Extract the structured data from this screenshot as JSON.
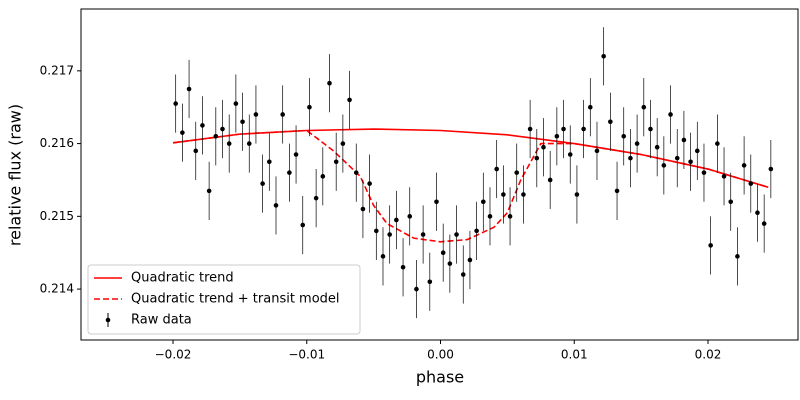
{
  "chart_data": {
    "type": "scatter",
    "xlabel": "phase",
    "ylabel": "relative flux (raw)",
    "xlim": [
      -0.02688,
      0.02673
    ],
    "ylim": [
      0.2133,
      0.21785
    ],
    "xticks": [
      {
        "value": -0.02,
        "label": "−0.02"
      },
      {
        "value": -0.01,
        "label": "−0.01"
      },
      {
        "value": 0,
        "label": "0.00"
      },
      {
        "value": 0.01,
        "label": "0.01"
      },
      {
        "value": 0.02,
        "label": "0.02"
      }
    ],
    "yticks": [
      0.214,
      0.215,
      0.216,
      0.217
    ],
    "legend": "lower left",
    "series": [
      {
        "name": "Quadratic trend",
        "type": "line",
        "style": "solid",
        "color": "#ff0000",
        "x": [
          -0.02,
          -0.015,
          -0.01,
          -0.005,
          0,
          0.005,
          0.01,
          0.015,
          0.02,
          0.0245
        ],
        "values": [
          0.21601,
          0.21613,
          0.21618,
          0.2162,
          0.21618,
          0.21612,
          0.216,
          0.21585,
          0.21565,
          0.2154
        ]
      },
      {
        "name": "Quadratic trend + transit model",
        "type": "line",
        "style": "dashed",
        "color": "#ff0000",
        "x": [
          -0.02,
          -0.015,
          -0.01,
          -0.008,
          -0.006,
          -0.005,
          -0.004,
          -0.002,
          0,
          0.002,
          0.004,
          0.005,
          0.006,
          0.0075,
          0.01,
          0.015,
          0.02,
          0.0245
        ],
        "values": [
          0.21601,
          0.21613,
          0.21618,
          0.2159,
          0.21555,
          0.21515,
          0.2149,
          0.2147,
          0.21465,
          0.21468,
          0.21485,
          0.21505,
          0.2155,
          0.216,
          0.216,
          0.21585,
          0.21565,
          0.2154
        ]
      },
      {
        "name": "Raw data",
        "type": "errorbar",
        "color": "#000000",
        "yerr": 0.0004,
        "x": [
          -0.0198,
          -0.0193,
          -0.0188,
          -0.0183,
          -0.0178,
          -0.0173,
          -0.0168,
          -0.0163,
          -0.0158,
          -0.0153,
          -0.0148,
          -0.0143,
          -0.0138,
          -0.0133,
          -0.0128,
          -0.0123,
          -0.0118,
          -0.0113,
          -0.0108,
          -0.0103,
          -0.0098,
          -0.0093,
          -0.0088,
          -0.0083,
          -0.0078,
          -0.0073,
          -0.0068,
          -0.0063,
          -0.0058,
          -0.0053,
          -0.0048,
          -0.0043,
          -0.0038,
          -0.0033,
          -0.0028,
          -0.0023,
          -0.0018,
          -0.0013,
          -0.0008,
          -0.0003,
          0.0002,
          0.0007,
          0.0012,
          0.0017,
          0.0022,
          0.0027,
          0.0032,
          0.0037,
          0.0042,
          0.0047,
          0.0052,
          0.0057,
          0.0062,
          0.0067,
          0.0072,
          0.0077,
          0.0082,
          0.0087,
          0.0092,
          0.0097,
          0.0102,
          0.0107,
          0.0112,
          0.0117,
          0.0122,
          0.0127,
          0.0132,
          0.0137,
          0.0142,
          0.0147,
          0.0152,
          0.0157,
          0.0162,
          0.0167,
          0.0172,
          0.0177,
          0.0182,
          0.0187,
          0.0192,
          0.0197,
          0.0202,
          0.0207,
          0.0212,
          0.0217,
          0.0222,
          0.0227,
          0.0232,
          0.0237,
          0.0242,
          0.0247
        ],
        "values": [
          0.21655,
          0.21615,
          0.21675,
          0.2159,
          0.21625,
          0.21535,
          0.2161,
          0.2162,
          0.216,
          0.21655,
          0.2163,
          0.216,
          0.2164,
          0.21545,
          0.21575,
          0.21515,
          0.2164,
          0.2156,
          0.21585,
          0.21488,
          0.2165,
          0.21525,
          0.21555,
          0.21683,
          0.21575,
          0.216,
          0.2166,
          0.2156,
          0.2151,
          0.21545,
          0.2148,
          0.21445,
          0.21475,
          0.21495,
          0.2143,
          0.215,
          0.214,
          0.21475,
          0.2141,
          0.2152,
          0.2145,
          0.21435,
          0.21475,
          0.2142,
          0.2144,
          0.2148,
          0.2152,
          0.215,
          0.21565,
          0.2153,
          0.215,
          0.2156,
          0.2153,
          0.2162,
          0.2158,
          0.21595,
          0.2155,
          0.2161,
          0.2162,
          0.21585,
          0.2153,
          0.2162,
          0.2165,
          0.2159,
          0.2172,
          0.2163,
          0.21535,
          0.2161,
          0.2158,
          0.216,
          0.2165,
          0.2162,
          0.21595,
          0.2157,
          0.2164,
          0.2158,
          0.21605,
          0.21575,
          0.2159,
          0.2156,
          0.2146,
          0.216,
          0.21555,
          0.2152,
          0.21445,
          0.2157,
          0.21545,
          0.21505,
          0.2149,
          0.21565
        ]
      }
    ]
  }
}
